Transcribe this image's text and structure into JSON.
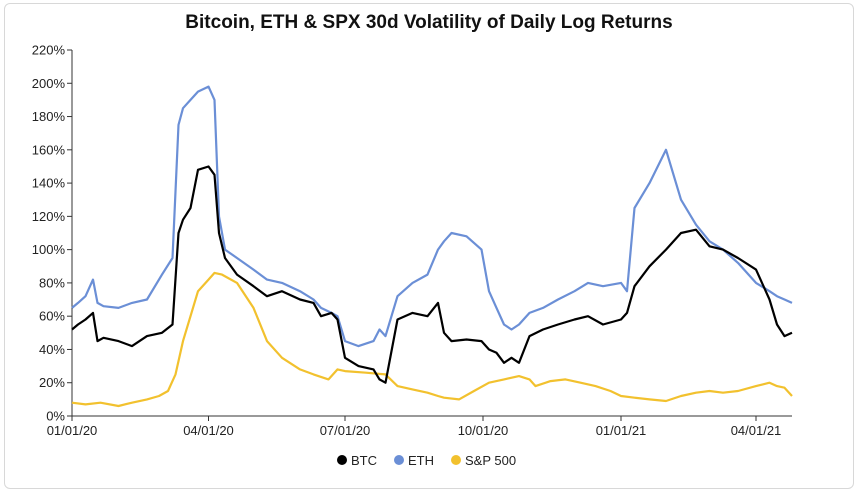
{
  "chart_data": {
    "type": "line",
    "title": "Bitcoin, ETH & SPX 30d Volatility of Daily Log Returns",
    "xlabel": "",
    "ylabel": "",
    "ylim": [
      0,
      220
    ],
    "xlim": [
      "2020-01-01",
      "2021-04-25"
    ],
    "y_ticks": [
      0,
      20,
      40,
      60,
      80,
      100,
      120,
      140,
      160,
      180,
      200,
      220
    ],
    "y_tick_labels": [
      "0%",
      "20%",
      "40%",
      "60%",
      "80%",
      "100%",
      "120%",
      "140%",
      "160%",
      "180%",
      "200%",
      "220%"
    ],
    "x_ticks": [
      "2020-01-01",
      "2020-04-01",
      "2020-07-01",
      "2020-10-01",
      "2021-01-01",
      "2021-04-01"
    ],
    "x_tick_labels": [
      "01/01/20",
      "04/01/20",
      "07/01/20",
      "10/01/20",
      "01/01/21",
      "04/01/21"
    ],
    "grid": false,
    "legend_position": "bottom-center",
    "series": [
      {
        "name": "BTC",
        "color": "#000000",
        "x": [
          "2020-01-01",
          "2020-01-05",
          "2020-01-10",
          "2020-01-15",
          "2020-01-18",
          "2020-01-22",
          "2020-02-01",
          "2020-02-10",
          "2020-02-20",
          "2020-03-01",
          "2020-03-08",
          "2020-03-12",
          "2020-03-15",
          "2020-03-20",
          "2020-03-25",
          "2020-04-01",
          "2020-04-05",
          "2020-04-08",
          "2020-04-12",
          "2020-04-20",
          "2020-05-01",
          "2020-05-10",
          "2020-05-20",
          "2020-06-01",
          "2020-06-10",
          "2020-06-15",
          "2020-06-22",
          "2020-06-26",
          "2020-07-01",
          "2020-07-10",
          "2020-07-20",
          "2020-07-24",
          "2020-07-28",
          "2020-08-05",
          "2020-08-15",
          "2020-08-25",
          "2020-09-01",
          "2020-09-05",
          "2020-09-10",
          "2020-09-20",
          "2020-09-30",
          "2020-10-05",
          "2020-10-10",
          "2020-10-15",
          "2020-10-20",
          "2020-10-25",
          "2020-11-01",
          "2020-11-10",
          "2020-11-20",
          "2020-12-01",
          "2020-12-10",
          "2020-12-20",
          "2021-01-01",
          "2021-01-05",
          "2021-01-10",
          "2021-01-20",
          "2021-01-31",
          "2021-02-10",
          "2021-02-20",
          "2021-03-01",
          "2021-03-10",
          "2021-03-20",
          "2021-04-01",
          "2021-04-10",
          "2021-04-15",
          "2021-04-20",
          "2021-04-25"
        ],
        "values": [
          52,
          55,
          58,
          62,
          45,
          47,
          45,
          42,
          48,
          50,
          55,
          110,
          118,
          125,
          148,
          150,
          145,
          110,
          95,
          85,
          78,
          72,
          75,
          70,
          68,
          60,
          62,
          58,
          35,
          30,
          28,
          22,
          20,
          58,
          62,
          60,
          68,
          50,
          45,
          46,
          45,
          40,
          38,
          32,
          35,
          32,
          48,
          52,
          55,
          58,
          60,
          55,
          58,
          62,
          78,
          90,
          100,
          110,
          112,
          102,
          100,
          95,
          88,
          70,
          55,
          48,
          50
        ]
      },
      {
        "name": "ETH",
        "color": "#6b8fd6",
        "x": [
          "2020-01-01",
          "2020-01-05",
          "2020-01-10",
          "2020-01-15",
          "2020-01-18",
          "2020-01-22",
          "2020-02-01",
          "2020-02-10",
          "2020-02-20",
          "2020-03-01",
          "2020-03-08",
          "2020-03-12",
          "2020-03-15",
          "2020-03-20",
          "2020-03-25",
          "2020-04-01",
          "2020-04-05",
          "2020-04-08",
          "2020-04-12",
          "2020-04-20",
          "2020-05-01",
          "2020-05-10",
          "2020-05-20",
          "2020-06-01",
          "2020-06-10",
          "2020-06-15",
          "2020-06-22",
          "2020-06-26",
          "2020-07-01",
          "2020-07-10",
          "2020-07-20",
          "2020-07-24",
          "2020-07-28",
          "2020-08-05",
          "2020-08-15",
          "2020-08-25",
          "2020-09-01",
          "2020-09-05",
          "2020-09-10",
          "2020-09-20",
          "2020-09-30",
          "2020-10-05",
          "2020-10-10",
          "2020-10-15",
          "2020-10-20",
          "2020-10-25",
          "2020-11-01",
          "2020-11-10",
          "2020-11-20",
          "2020-12-01",
          "2020-12-10",
          "2020-12-20",
          "2021-01-01",
          "2021-01-05",
          "2021-01-10",
          "2021-01-20",
          "2021-01-31",
          "2021-02-10",
          "2021-02-20",
          "2021-03-01",
          "2021-03-10",
          "2021-03-20",
          "2021-04-01",
          "2021-04-10",
          "2021-04-15",
          "2021-04-20",
          "2021-04-25"
        ],
        "values": [
          65,
          68,
          72,
          82,
          68,
          66,
          65,
          68,
          70,
          85,
          95,
          175,
          185,
          190,
          195,
          198,
          190,
          120,
          100,
          95,
          88,
          82,
          80,
          75,
          70,
          65,
          62,
          60,
          45,
          42,
          45,
          52,
          48,
          72,
          80,
          85,
          100,
          105,
          110,
          108,
          100,
          75,
          65,
          55,
          52,
          55,
          62,
          65,
          70,
          75,
          80,
          78,
          80,
          75,
          125,
          140,
          160,
          130,
          115,
          105,
          100,
          92,
          80,
          75,
          72,
          70,
          68
        ]
      },
      {
        "name": "S&P 500",
        "color": "#f2c12e",
        "x": [
          "2020-01-01",
          "2020-01-10",
          "2020-01-20",
          "2020-02-01",
          "2020-02-10",
          "2020-02-20",
          "2020-02-28",
          "2020-03-05",
          "2020-03-10",
          "2020-03-15",
          "2020-03-20",
          "2020-03-25",
          "2020-04-01",
          "2020-04-05",
          "2020-04-10",
          "2020-04-20",
          "2020-05-01",
          "2020-05-10",
          "2020-05-20",
          "2020-06-01",
          "2020-06-10",
          "2020-06-20",
          "2020-06-26",
          "2020-07-01",
          "2020-07-15",
          "2020-07-28",
          "2020-08-05",
          "2020-08-15",
          "2020-08-25",
          "2020-09-01",
          "2020-09-05",
          "2020-09-15",
          "2020-09-25",
          "2020-10-05",
          "2020-10-15",
          "2020-10-25",
          "2020-11-01",
          "2020-11-05",
          "2020-11-15",
          "2020-11-25",
          "2020-12-05",
          "2020-12-15",
          "2020-12-25",
          "2021-01-01",
          "2021-01-10",
          "2021-01-20",
          "2021-01-31",
          "2021-02-10",
          "2021-02-20",
          "2021-03-01",
          "2021-03-10",
          "2021-03-20",
          "2021-04-01",
          "2021-04-10",
          "2021-04-15",
          "2021-04-20",
          "2021-04-25"
        ],
        "values": [
          8,
          7,
          8,
          6,
          8,
          10,
          12,
          15,
          25,
          45,
          60,
          75,
          82,
          86,
          85,
          80,
          65,
          45,
          35,
          28,
          25,
          22,
          28,
          27,
          26,
          25,
          18,
          16,
          14,
          12,
          11,
          10,
          15,
          20,
          22,
          24,
          22,
          18,
          21,
          22,
          20,
          18,
          15,
          12,
          11,
          10,
          9,
          12,
          14,
          15,
          14,
          15,
          18,
          20,
          18,
          17,
          12
        ]
      }
    ]
  }
}
